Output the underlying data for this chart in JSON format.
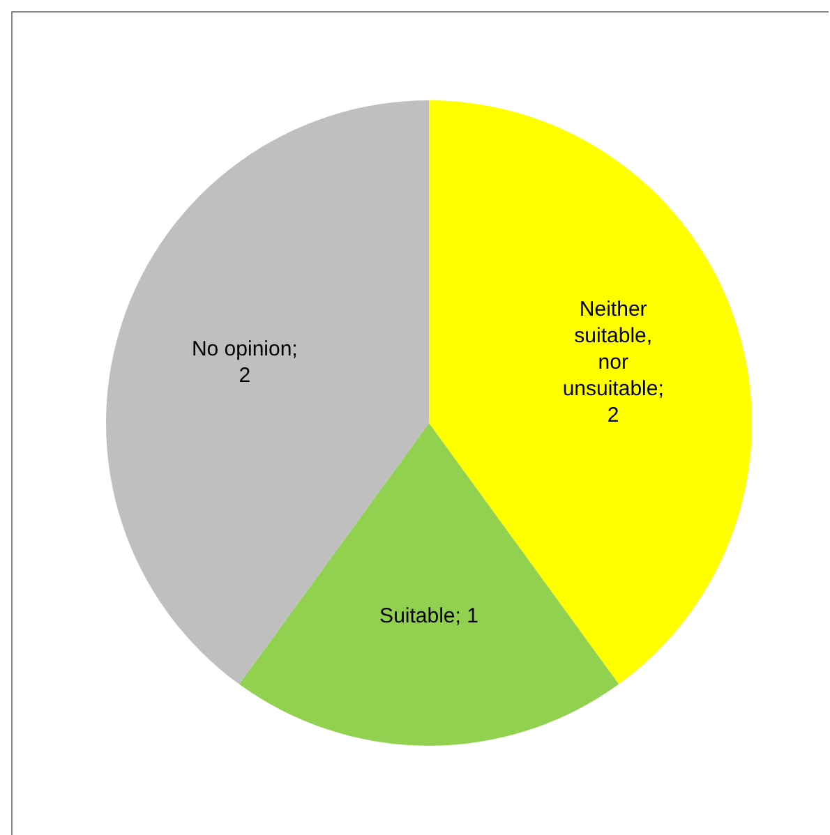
{
  "chart_data": {
    "type": "pie",
    "categories": [
      "Neither suitable, nor unsuitable",
      "Suitable",
      "No opinion"
    ],
    "values": [
      2,
      1,
      2
    ],
    "value_labels": [
      "; 2",
      "; 1",
      "; 2"
    ],
    "colors": [
      "#ffff00",
      "#92d050",
      "#bfbfbf"
    ],
    "legend": false
  }
}
